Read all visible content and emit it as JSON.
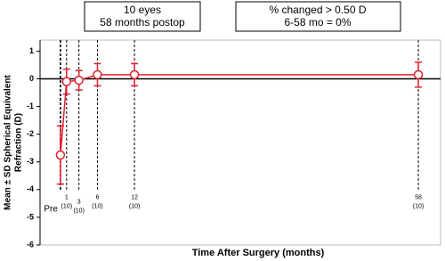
{
  "chart_data": {
    "type": "line-errorbar",
    "annotations": [
      [
        "10 eyes",
        "58 months postop"
      ],
      [
        "% changed > 0.50 D",
        "6-58 mo = 0%"
      ]
    ],
    "ylabel": [
      "Mean ± SD Spherical Equivalent",
      "Refraction (D)"
    ],
    "xlabel": "Time After Surgery (months)",
    "x": [
      0,
      1,
      3,
      6,
      12,
      58
    ],
    "xlim": [
      -3.3,
      61.6
    ],
    "xticks": [
      {
        "value": 0,
        "label": "Pre"
      },
      1,
      3,
      6,
      12,
      58
    ],
    "n_labels": [
      null,
      "(10)",
      "(10)",
      "(10)",
      "(10)",
      "(10)"
    ],
    "ylim": [
      -6,
      1.4
    ],
    "yticks": [
      -6,
      -5,
      -4,
      -3,
      -2,
      -1,
      0,
      1
    ],
    "series": [
      {
        "color": "#e0202e",
        "values": [
          -2.75,
          -0.1,
          -0.05,
          0.15,
          0.15,
          0.15
        ],
        "errors": [
          1.05,
          0.45,
          0.35,
          0.4,
          0.4,
          0.45
        ]
      }
    ]
  }
}
